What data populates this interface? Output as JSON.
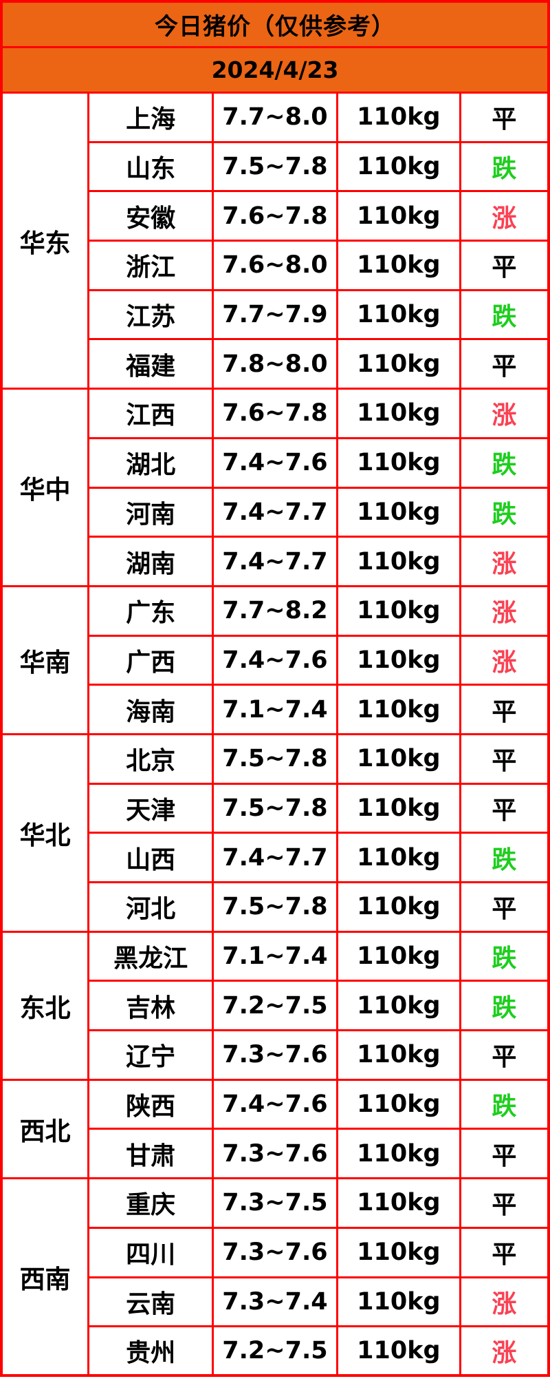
{
  "header": {
    "title": "今日猪价（仅供参考）",
    "date": "2024/4/23"
  },
  "colors": {
    "header_bg": "#eb6514",
    "border": "#ff0000",
    "text": "#000000",
    "trend_up": "#fa4153",
    "trend_down": "#1dce1d",
    "trend_flat": "#000000"
  },
  "chart_data": {
    "type": "table",
    "title": "今日猪价（仅供参考）",
    "date": "2024/4/23",
    "weight_label": "110kg",
    "trend_legend": {
      "up": "涨",
      "down": "跌",
      "flat": "平"
    },
    "regions": [
      {
        "name": "华东",
        "rows": [
          {
            "province": "上海",
            "price": "7.7~8.0",
            "weight": "110kg",
            "trend": "平",
            "trend_dir": "flat"
          },
          {
            "province": "山东",
            "price": "7.5~7.8",
            "weight": "110kg",
            "trend": "跌",
            "trend_dir": "down"
          },
          {
            "province": "安徽",
            "price": "7.6~7.8",
            "weight": "110kg",
            "trend": "涨",
            "trend_dir": "up"
          },
          {
            "province": "浙江",
            "price": "7.6~8.0",
            "weight": "110kg",
            "trend": "平",
            "trend_dir": "flat"
          },
          {
            "province": "江苏",
            "price": "7.7~7.9",
            "weight": "110kg",
            "trend": "跌",
            "trend_dir": "down"
          },
          {
            "province": "福建",
            "price": "7.8~8.0",
            "weight": "110kg",
            "trend": "平",
            "trend_dir": "flat"
          }
        ]
      },
      {
        "name": "华中",
        "rows": [
          {
            "province": "江西",
            "price": "7.6~7.8",
            "weight": "110kg",
            "trend": "涨",
            "trend_dir": "up"
          },
          {
            "province": "湖北",
            "price": "7.4~7.6",
            "weight": "110kg",
            "trend": "跌",
            "trend_dir": "down"
          },
          {
            "province": "河南",
            "price": "7.4~7.7",
            "weight": "110kg",
            "trend": "跌",
            "trend_dir": "down"
          },
          {
            "province": "湖南",
            "price": "7.4~7.7",
            "weight": "110kg",
            "trend": "涨",
            "trend_dir": "up"
          }
        ]
      },
      {
        "name": "华南",
        "rows": [
          {
            "province": "广东",
            "price": "7.7~8.2",
            "weight": "110kg",
            "trend": "涨",
            "trend_dir": "up"
          },
          {
            "province": "广西",
            "price": "7.4~7.6",
            "weight": "110kg",
            "trend": "涨",
            "trend_dir": "up"
          },
          {
            "province": "海南",
            "price": "7.1~7.4",
            "weight": "110kg",
            "trend": "平",
            "trend_dir": "flat"
          }
        ]
      },
      {
        "name": "华北",
        "rows": [
          {
            "province": "北京",
            "price": "7.5~7.8",
            "weight": "110kg",
            "trend": "平",
            "trend_dir": "flat"
          },
          {
            "province": "天津",
            "price": "7.5~7.8",
            "weight": "110kg",
            "trend": "平",
            "trend_dir": "flat"
          },
          {
            "province": "山西",
            "price": "7.4~7.7",
            "weight": "110kg",
            "trend": "跌",
            "trend_dir": "down"
          },
          {
            "province": "河北",
            "price": "7.5~7.8",
            "weight": "110kg",
            "trend": "平",
            "trend_dir": "flat"
          }
        ]
      },
      {
        "name": "东北",
        "rows": [
          {
            "province": "黑龙江",
            "price": "7.1~7.4",
            "weight": "110kg",
            "trend": "跌",
            "trend_dir": "down"
          },
          {
            "province": "吉林",
            "price": "7.2~7.5",
            "weight": "110kg",
            "trend": "跌",
            "trend_dir": "down"
          },
          {
            "province": "辽宁",
            "price": "7.3~7.6",
            "weight": "110kg",
            "trend": "平",
            "trend_dir": "flat"
          }
        ]
      },
      {
        "name": "西北",
        "rows": [
          {
            "province": "陕西",
            "price": "7.4~7.6",
            "weight": "110kg",
            "trend": "跌",
            "trend_dir": "down"
          },
          {
            "province": "甘肃",
            "price": "7.3~7.6",
            "weight": "110kg",
            "trend": "平",
            "trend_dir": "flat"
          }
        ]
      },
      {
        "name": "西南",
        "rows": [
          {
            "province": "重庆",
            "price": "7.3~7.5",
            "weight": "110kg",
            "trend": "平",
            "trend_dir": "flat"
          },
          {
            "province": "四川",
            "price": "7.3~7.6",
            "weight": "110kg",
            "trend": "平",
            "trend_dir": "flat"
          },
          {
            "province": "云南",
            "price": "7.3~7.4",
            "weight": "110kg",
            "trend": "涨",
            "trend_dir": "up"
          },
          {
            "province": "贵州",
            "price": "7.2~7.5",
            "weight": "110kg",
            "trend": "涨",
            "trend_dir": "up"
          }
        ]
      }
    ]
  }
}
